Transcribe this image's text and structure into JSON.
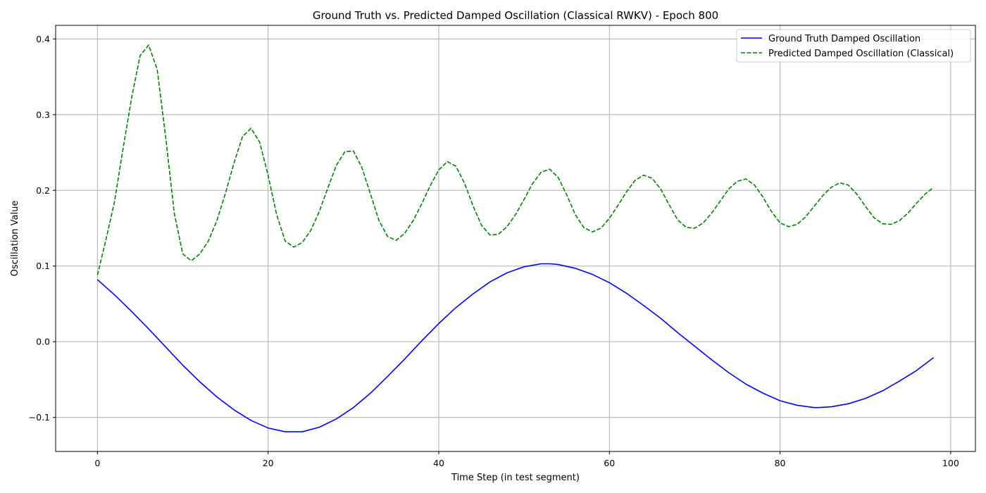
{
  "chart_data": {
    "type": "line",
    "title": "Ground Truth vs. Predicted Damped Oscillation (Classical RWKV) - Epoch 800",
    "xlabel": "Time Step (in test segment)",
    "ylabel": "Oscillation Value",
    "xlim": [
      -4.9,
      102.9
    ],
    "ylim": [
      -0.145,
      0.418
    ],
    "xticks": [
      0,
      20,
      40,
      60,
      80,
      100
    ],
    "xtick_labels": [
      "0",
      "20",
      "40",
      "60",
      "80",
      "100"
    ],
    "yticks": [
      -0.1,
      0.0,
      0.1,
      0.2,
      0.3,
      0.4
    ],
    "ytick_labels": [
      "−0.1",
      "0.0",
      "0.1",
      "0.2",
      "0.3",
      "0.4"
    ],
    "grid": true,
    "legend_position": "top-right",
    "series": [
      {
        "name": "Ground Truth Damped Oscillation",
        "color": "#0000ff",
        "style": "solid",
        "x": [
          0,
          2,
          4,
          6,
          8,
          10,
          12,
          14,
          16,
          18,
          20,
          22,
          24,
          26,
          28,
          30,
          32,
          34,
          36,
          38,
          40,
          42,
          44,
          46,
          48,
          50,
          52,
          53,
          54,
          56,
          58,
          60,
          62,
          64,
          66,
          68,
          70,
          72,
          74,
          76,
          78,
          80,
          82,
          84,
          84.5,
          86,
          88,
          90,
          92,
          94,
          96,
          98
        ],
        "y": [
          0.082,
          0.062,
          0.04,
          0.017,
          -0.007,
          -0.031,
          -0.053,
          -0.073,
          -0.09,
          -0.104,
          -0.114,
          -0.119,
          -0.119,
          -0.113,
          -0.102,
          -0.087,
          -0.068,
          -0.046,
          -0.023,
          0.001,
          0.024,
          0.045,
          0.063,
          0.079,
          0.091,
          0.099,
          0.103,
          0.103,
          0.102,
          0.097,
          0.089,
          0.078,
          0.064,
          0.048,
          0.031,
          0.012,
          -0.006,
          -0.024,
          -0.041,
          -0.056,
          -0.068,
          -0.078,
          -0.084,
          -0.087,
          -0.087,
          -0.086,
          -0.082,
          -0.075,
          -0.065,
          -0.052,
          -0.038,
          -0.021
        ]
      },
      {
        "name": "Predicted Damped Oscillation (Classical)",
        "color": "#008000",
        "style": "dashed",
        "x": [
          0,
          1,
          2,
          3,
          4,
          5,
          6,
          7,
          8,
          9,
          10,
          11,
          12,
          13,
          14,
          15,
          16,
          17,
          18,
          19,
          20,
          21,
          22,
          23,
          24,
          25,
          26,
          27,
          28,
          29,
          30,
          31,
          32,
          33,
          34,
          35,
          36,
          37,
          38,
          39,
          40,
          41,
          42,
          43,
          44,
          45,
          46,
          47,
          48,
          49,
          50,
          51,
          52,
          53,
          54,
          55,
          56,
          57,
          58,
          59,
          60,
          61,
          62,
          63,
          64,
          65,
          66,
          67,
          68,
          69,
          70,
          71,
          72,
          73,
          74,
          75,
          76,
          77,
          78,
          79,
          80,
          81,
          82,
          83,
          84,
          85,
          86,
          87,
          88,
          89,
          90,
          91,
          92,
          93,
          94,
          95,
          96,
          97,
          98
        ],
        "y": [
          0.088,
          0.135,
          0.185,
          0.255,
          0.322,
          0.378,
          0.392,
          0.36,
          0.27,
          0.17,
          0.116,
          0.107,
          0.116,
          0.133,
          0.16,
          0.196,
          0.236,
          0.271,
          0.282,
          0.264,
          0.22,
          0.168,
          0.133,
          0.125,
          0.131,
          0.147,
          0.172,
          0.203,
          0.233,
          0.251,
          0.252,
          0.23,
          0.195,
          0.16,
          0.139,
          0.134,
          0.143,
          0.16,
          0.182,
          0.206,
          0.227,
          0.238,
          0.232,
          0.21,
          0.18,
          0.154,
          0.141,
          0.142,
          0.152,
          0.168,
          0.188,
          0.209,
          0.224,
          0.228,
          0.217,
          0.194,
          0.168,
          0.151,
          0.145,
          0.15,
          0.163,
          0.18,
          0.198,
          0.213,
          0.22,
          0.216,
          0.202,
          0.181,
          0.161,
          0.151,
          0.15,
          0.157,
          0.17,
          0.186,
          0.202,
          0.212,
          0.215,
          0.207,
          0.191,
          0.172,
          0.157,
          0.152,
          0.155,
          0.165,
          0.179,
          0.193,
          0.204,
          0.21,
          0.207,
          0.195,
          0.179,
          0.164,
          0.156,
          0.155,
          0.16,
          0.17,
          0.183,
          0.195,
          0.204
        ]
      }
    ]
  }
}
